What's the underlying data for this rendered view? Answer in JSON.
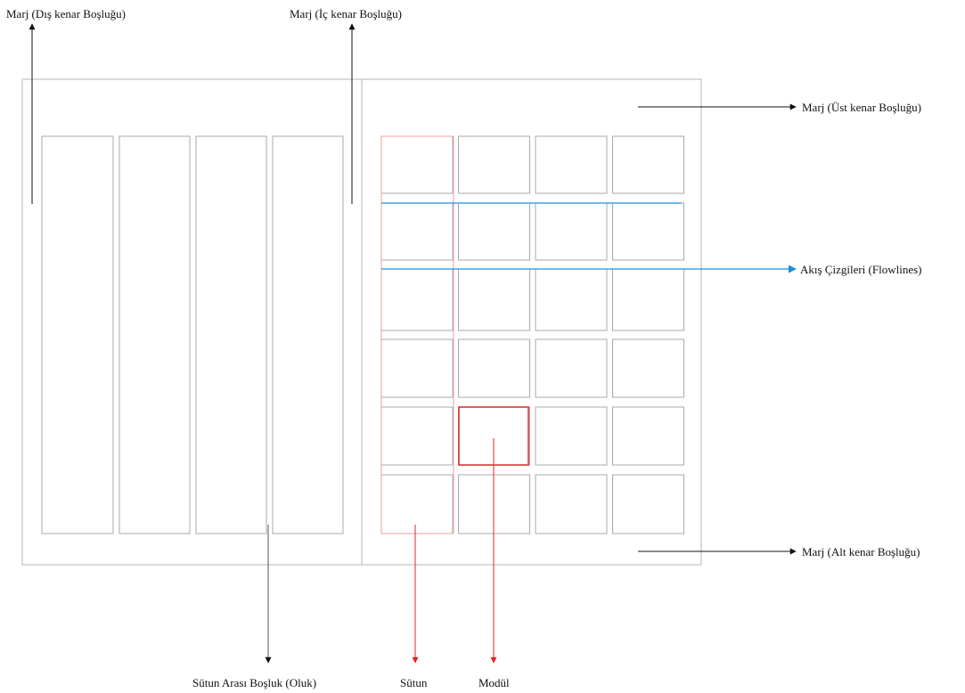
{
  "labels": {
    "outer_margin": "Marj (Dış kenar Boşluğu)",
    "inner_margin": "Marj (İç kenar Boşluğu)",
    "top_margin": "Marj (Üst kenar Boşluğu)",
    "flowlines": "Akış Çizgileri (Flowlines)",
    "bottom_margin": "Marj (Alt kenar Boşluğu)",
    "gutter": "Sütun Arası Boşluk (Oluk)",
    "column": "Sütun",
    "module": "Modül"
  },
  "grid": {
    "left_page_columns": 4,
    "right_page_columns": 4,
    "right_page_rows": 6
  },
  "colors": {
    "page_border": "#b5b5b5",
    "grid_line": "#a9a9a9",
    "arrow_black": "#111111",
    "flowline": "#1f8fd6",
    "highlight_red": "#e02424",
    "column_highlight": "#f2a0a0"
  }
}
